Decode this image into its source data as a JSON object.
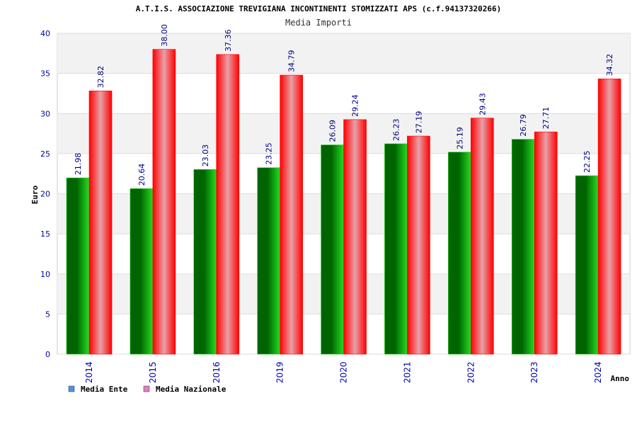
{
  "chart_data": {
    "type": "bar",
    "title": "A.T.I.S. ASSOCIAZIONE TREVIGIANA INCONTINENTI STOMIZZATI APS (c.f.94137320266)",
    "subtitle": "Media Importi",
    "xlabel": "Anno",
    "ylabel": "Euro",
    "ylim": [
      0,
      40
    ],
    "yticks": [
      0,
      5,
      10,
      15,
      20,
      25,
      30,
      35,
      40
    ],
    "categories": [
      "2014",
      "2015",
      "2016",
      "2019",
      "2020",
      "2021",
      "2022",
      "2023",
      "2024"
    ],
    "series": [
      {
        "name": "Media Ente",
        "values": [
          21.98,
          20.64,
          23.03,
          23.25,
          26.09,
          26.23,
          25.19,
          26.79,
          22.25
        ],
        "labels": [
          "21.98",
          "20.64",
          "23.03",
          "23.25",
          "26.09",
          "26.23",
          "25.19",
          "26.79",
          "22.25"
        ]
      },
      {
        "name": "Media Nazionale",
        "values": [
          32.82,
          38.0,
          37.36,
          34.79,
          29.24,
          27.19,
          29.43,
          27.71,
          34.32
        ],
        "labels": [
          "32.82",
          "38.00",
          "37.36",
          "34.79",
          "29.24",
          "27.19",
          "29.43",
          "27.71",
          "34.32"
        ]
      }
    ],
    "grid": true,
    "legend_position": "bottom-left",
    "colors": {
      "ente_dark": "#006400",
      "ente_light": "#22dd22",
      "naz_edge": "#ff0000",
      "naz_center": "#e8a0a8",
      "legend_ente": "#4f94e0",
      "legend_naz": "#e080c0",
      "axis_text": "#0000aa",
      "value_text": "#000080",
      "band": "#f2f2f2",
      "grid": "#dddddd"
    }
  }
}
